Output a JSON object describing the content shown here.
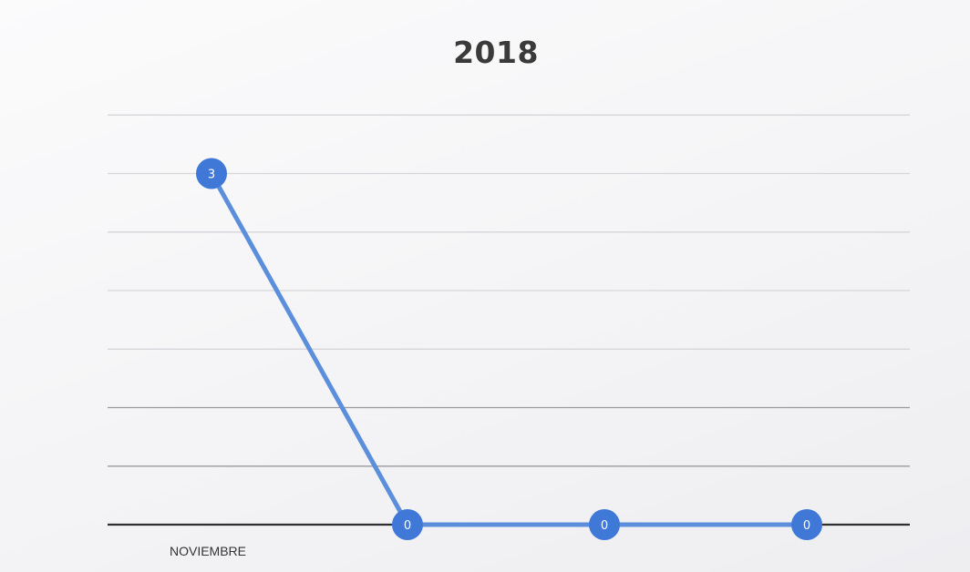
{
  "chart_data": {
    "type": "line",
    "title": "2018",
    "categories": [
      "NOVIEMBRE",
      "",
      "",
      ""
    ],
    "series": [
      {
        "values": [
          3,
          0,
          0,
          0
        ],
        "data_labels": [
          "3",
          "0",
          "0",
          "0"
        ]
      }
    ],
    "ylim": [
      0,
      3.5
    ],
    "grid": true,
    "legend": "none",
    "colors": {
      "line": "#5b8fdc",
      "marker": "#3f78d6",
      "gridline_light": "#d6d6da",
      "gridline_dark": "#9a9a9e",
      "baseline": "#2f2f2f"
    }
  }
}
